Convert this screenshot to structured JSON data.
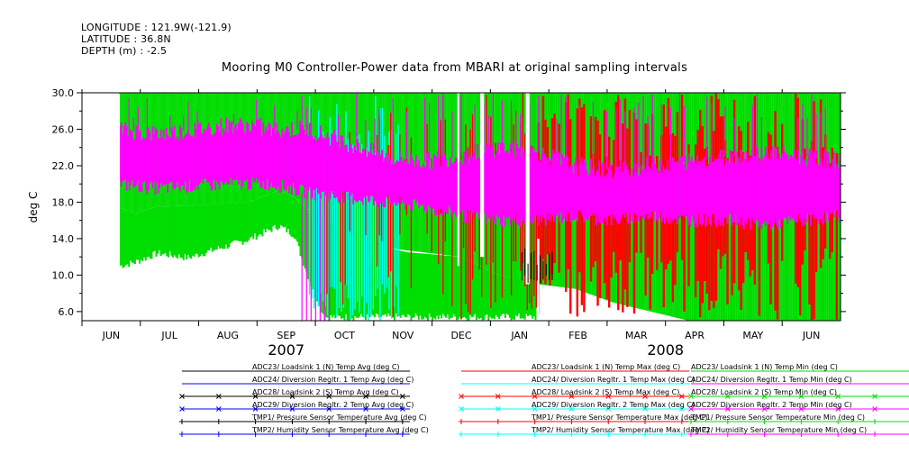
{
  "header": {
    "longitude": "LONGITUDE : 121.9W(-121.9)",
    "latitude": "LATITUDE : 36.8N",
    "depth": "DEPTH (m) : -2.5"
  },
  "chart_data": {
    "type": "line",
    "title": "Mooring M0 Controller-Power data from MBARI at original sampling intervals",
    "ylabel": "deg C",
    "xlabel": "",
    "ylim": [
      5.0,
      30.0
    ],
    "y_ticks": [
      "6.0",
      "10.0",
      "14.0",
      "18.0",
      "22.0",
      "26.0",
      "30.0"
    ],
    "x_ticks": [
      "JUN",
      "JUL",
      "AUG",
      "SEP",
      "OCT",
      "NOV",
      "DEC",
      "JAN",
      "FEB",
      "MAR",
      "APR",
      "MAY",
      "JUN"
    ],
    "years": [
      "2007",
      "2008"
    ],
    "grid": false,
    "legend_position": "bottom",
    "series": [
      {
        "name": "ADC23/ Loadsink 1 (N) Temp Avg (deg C)",
        "color": "#000000",
        "marker": "none"
      },
      {
        "name": "ADC23/ Loadsink 1 (N) Temp Max (deg C)",
        "color": "#ff0000",
        "marker": "none"
      },
      {
        "name": "ADC23/ Loadsink 1 (N) Temp Min (deg C)",
        "color": "#00dd00",
        "marker": "none"
      },
      {
        "name": "ADC24/ Diversion Regltr. 1 Temp Avg (deg C)",
        "color": "#0000ff",
        "marker": "none"
      },
      {
        "name": "ADC24/ Diversion Regltr. 1 Temp Max (deg C)",
        "color": "#00ffff",
        "marker": "none"
      },
      {
        "name": "ADC24/ Diversion Regltr. 1 Temp Min (deg C)",
        "color": "#ff00ff",
        "marker": "none"
      },
      {
        "name": "ADC28/ Loadsink 2 (S) Temp Avg (deg C)",
        "color": "#000000",
        "marker": "x"
      },
      {
        "name": "ADC28/ Loadsink 2 (S) Temp Max (deg C)",
        "color": "#ff0000",
        "marker": "x"
      },
      {
        "name": "ADC28/ Loadsink 2 (S) Temp Min (deg C)",
        "color": "#00dd00",
        "marker": "x"
      },
      {
        "name": "ADC29/ Diversion Regltr. 2 Temp Avg (deg C)",
        "color": "#0000ff",
        "marker": "x"
      },
      {
        "name": "ADC29/ Diversion Regltr. 2 Temp Max (deg C)",
        "color": "#00ffff",
        "marker": "x"
      },
      {
        "name": "ADC29/ Diversion Regltr. 2 Temp Min (deg C)",
        "color": "#ff00ff",
        "marker": "x"
      },
      {
        "name": "TMP1/ Pressure Sensor Temperature Avg (deg C)",
        "color": "#000000",
        "marker": "plus"
      },
      {
        "name": "TMP1/ Pressure Sensor Temperature Max (deg C)",
        "color": "#ff0000",
        "marker": "plus"
      },
      {
        "name": "TMP1/ Pressure Sensor Temperature Min (deg C)",
        "color": "#00dd00",
        "marker": "plus"
      },
      {
        "name": "TMP2/ Humidity Sensor Temperature Avg (deg C)",
        "color": "#0000ff",
        "marker": "plus"
      },
      {
        "name": "TMP2/ Humidity Sensor Temperature Max (deg C)",
        "color": "#00ffff",
        "marker": "plus"
      },
      {
        "name": "TMP2/ Humidity Sensor Temperature Min (deg C)",
        "color": "#ff00ff",
        "marker": "plus"
      }
    ],
    "bands": [
      {
        "name": "green-min-band",
        "color": "#00ee00",
        "points": [
          [
            0.045,
            17.5,
            30
          ],
          [
            0.07,
            16.8,
            30
          ],
          [
            0.1,
            17.5,
            30
          ],
          [
            0.14,
            17.6,
            30
          ],
          [
            0.18,
            17.8,
            30
          ],
          [
            0.22,
            18.0,
            30
          ],
          [
            0.26,
            19.3,
            30
          ],
          [
            0.28,
            18.5,
            30
          ],
          [
            0.3,
            17.0,
            30
          ],
          [
            0.32,
            16.0,
            30
          ],
          [
            0.35,
            15.0,
            30
          ],
          [
            0.4,
            13.0,
            30
          ],
          [
            0.45,
            12.5,
            30
          ],
          [
            0.5,
            12.0,
            30
          ],
          [
            0.55,
            10.0,
            30
          ],
          [
            0.6,
            9.0,
            30
          ],
          [
            0.65,
            8.5,
            30
          ],
          [
            0.7,
            7.0,
            30
          ],
          [
            0.75,
            6.0,
            30
          ],
          [
            0.8,
            5.0,
            30
          ],
          [
            0.85,
            5.0,
            30
          ],
          [
            0.9,
            5.0,
            30
          ],
          [
            0.95,
            5.0,
            30
          ],
          [
            1.0,
            5.0,
            30
          ]
        ]
      },
      {
        "name": "green-low-band",
        "color": "#00ee00",
        "points": [
          [
            0.045,
            10.5,
            17.5
          ],
          [
            0.07,
            11.0,
            16.8
          ],
          [
            0.1,
            12.0,
            17.5
          ],
          [
            0.14,
            11.5,
            17.6
          ],
          [
            0.18,
            12.5,
            17.8
          ],
          [
            0.22,
            13.5,
            18.0
          ],
          [
            0.26,
            15.0,
            19.3
          ],
          [
            0.28,
            14.0,
            18.5
          ],
          [
            0.3,
            9.0,
            17.0
          ],
          [
            0.32,
            5.0,
            16.0
          ],
          [
            0.36,
            5.0,
            15.0
          ],
          [
            0.4,
            5.0,
            13.0
          ],
          [
            0.43,
            5.0,
            12.5
          ],
          [
            0.5,
            5.0,
            12.0
          ],
          [
            0.55,
            5.0,
            10.0
          ],
          [
            0.6,
            5.0,
            9.0
          ]
        ]
      },
      {
        "name": "magenta-band",
        "color": "#ff00ff",
        "points": [
          [
            0.045,
            20.0,
            26.0
          ],
          [
            0.1,
            19.5,
            25.5
          ],
          [
            0.15,
            19.8,
            26.0
          ],
          [
            0.2,
            20.0,
            26.5
          ],
          [
            0.25,
            20.0,
            26.0
          ],
          [
            0.3,
            19.0,
            26.0
          ],
          [
            0.35,
            18.5,
            24.5
          ],
          [
            0.4,
            18.0,
            23.0
          ],
          [
            0.45,
            17.5,
            22.5
          ],
          [
            0.5,
            16.5,
            23.0
          ],
          [
            0.55,
            16.0,
            24.0
          ],
          [
            0.6,
            16.0,
            23.5
          ],
          [
            0.65,
            16.5,
            22.0
          ],
          [
            0.7,
            16.0,
            21.5
          ],
          [
            0.75,
            16.5,
            22.0
          ],
          [
            0.8,
            16.0,
            22.5
          ],
          [
            0.85,
            16.0,
            23.0
          ],
          [
            0.9,
            15.5,
            23.5
          ],
          [
            0.95,
            16.0,
            23.0
          ],
          [
            1.0,
            16.5,
            22.5
          ]
        ]
      }
    ]
  },
  "colors": {
    "black": "#000000",
    "red": "#ff0000",
    "green": "#00dd00",
    "blue": "#0000ff",
    "cyan": "#00ffff",
    "magenta": "#ff00ff"
  }
}
